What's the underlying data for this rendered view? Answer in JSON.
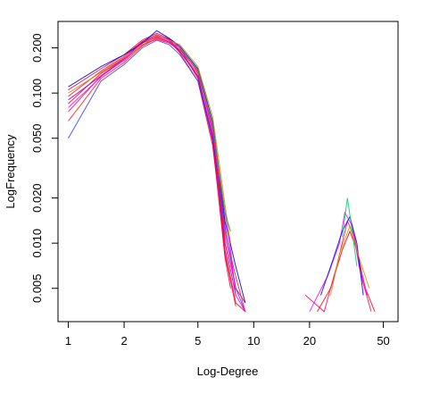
{
  "chart_data": {
    "type": "line",
    "title": "",
    "xlabel": "Log-Degree",
    "ylabel": "LogFrequency",
    "xscale": "log",
    "yscale": "log",
    "xlim": [
      0.88,
      60
    ],
    "ylim": [
      0.003,
      0.3
    ],
    "grid": false,
    "legend": "none",
    "x_ticks": [
      {
        "value": 1,
        "label": "1"
      },
      {
        "value": 2,
        "label": "2"
      },
      {
        "value": 5,
        "label": "5"
      },
      {
        "value": 10,
        "label": "10"
      },
      {
        "value": 20,
        "label": "20"
      },
      {
        "value": 50,
        "label": "50"
      }
    ],
    "y_ticks": [
      {
        "value": 0.005,
        "label": "0.005"
      },
      {
        "value": 0.01,
        "label": "0.010"
      },
      {
        "value": 0.02,
        "label": "0.020"
      },
      {
        "value": 0.05,
        "label": "0.050"
      },
      {
        "value": 0.1,
        "label": "0.100"
      },
      {
        "value": 0.2,
        "label": "0.200"
      }
    ],
    "series": [
      {
        "color": "#ff0000",
        "points": [
          [
            1,
            0.085
          ],
          [
            1.5,
            0.135
          ],
          [
            2,
            0.17
          ],
          [
            2.5,
            0.215
          ],
          [
            3,
            0.235
          ],
          [
            3.5,
            0.22
          ],
          [
            4,
            0.19
          ],
          [
            5,
            0.13
          ],
          [
            6,
            0.05
          ],
          [
            6.5,
            0.022
          ],
          [
            7,
            0.009
          ],
          [
            8,
            0.004
          ],
          [
            9,
            0.0035
          ]
        ]
      },
      {
        "color": "#ff0040",
        "points": [
          [
            1,
            0.095
          ],
          [
            1.5,
            0.14
          ],
          [
            2,
            0.175
          ],
          [
            2.5,
            0.22
          ],
          [
            3,
            0.245
          ],
          [
            3.5,
            0.225
          ],
          [
            4,
            0.185
          ],
          [
            5,
            0.12
          ],
          [
            6,
            0.045
          ],
          [
            6.5,
            0.02
          ],
          [
            7,
            0.0085
          ],
          [
            8,
            0.0038
          ]
        ]
      },
      {
        "color": "#ff0066",
        "points": [
          [
            1,
            0.075
          ],
          [
            1.5,
            0.13
          ],
          [
            2,
            0.165
          ],
          [
            2.5,
            0.21
          ],
          [
            3,
            0.228
          ],
          [
            3.5,
            0.215
          ],
          [
            4,
            0.195
          ],
          [
            5,
            0.14
          ],
          [
            6,
            0.055
          ],
          [
            6.5,
            0.025
          ],
          [
            7,
            0.011
          ],
          [
            8,
            0.005
          ],
          [
            9,
            0.004
          ]
        ]
      },
      {
        "color": "#e6004c",
        "points": [
          [
            1,
            0.105
          ],
          [
            1.5,
            0.145
          ],
          [
            2,
            0.18
          ],
          [
            2.5,
            0.225
          ],
          [
            3,
            0.25
          ],
          [
            3.5,
            0.23
          ],
          [
            4,
            0.2
          ],
          [
            5,
            0.125
          ],
          [
            6,
            0.048
          ],
          [
            6.5,
            0.019
          ],
          [
            7,
            0.008
          ],
          [
            7.5,
            0.005
          ]
        ]
      },
      {
        "color": "#ff1a1a",
        "points": [
          [
            1,
            0.065
          ],
          [
            1.5,
            0.125
          ],
          [
            2,
            0.16
          ],
          [
            2.5,
            0.205
          ],
          [
            3,
            0.232
          ],
          [
            3.5,
            0.218
          ],
          [
            4,
            0.188
          ],
          [
            5,
            0.135
          ],
          [
            6,
            0.06
          ],
          [
            6.5,
            0.028
          ],
          [
            7,
            0.012
          ],
          [
            8,
            0.006
          ],
          [
            9,
            0.0035
          ]
        ]
      },
      {
        "color": "#3a3aff",
        "points": [
          [
            1,
            0.05
          ],
          [
            1.5,
            0.12
          ],
          [
            2,
            0.155
          ],
          [
            2.5,
            0.2
          ],
          [
            3,
            0.225
          ],
          [
            3.5,
            0.21
          ],
          [
            4,
            0.18
          ],
          [
            5,
            0.12
          ],
          [
            6,
            0.05
          ],
          [
            7,
            0.013
          ],
          [
            8,
            0.005
          ],
          [
            9,
            0.0035
          ]
        ]
      },
      {
        "color": "#0000cc",
        "points": [
          [
            1,
            0.11
          ],
          [
            1.5,
            0.15
          ],
          [
            2,
            0.18
          ],
          [
            2.5,
            0.215
          ],
          [
            3,
            0.26
          ],
          [
            3.5,
            0.232
          ],
          [
            4,
            0.205
          ],
          [
            5,
            0.145
          ],
          [
            6,
            0.065
          ],
          [
            6.5,
            0.03
          ],
          [
            7,
            0.014
          ],
          [
            8,
            0.007
          ],
          [
            9,
            0.004
          ]
        ]
      },
      {
        "color": "#9900cc",
        "points": [
          [
            1,
            0.09
          ],
          [
            1.5,
            0.13
          ],
          [
            2,
            0.17
          ],
          [
            2.5,
            0.218
          ],
          [
            3,
            0.24
          ],
          [
            3.5,
            0.228
          ],
          [
            4,
            0.19
          ],
          [
            5,
            0.128
          ],
          [
            6,
            0.052
          ],
          [
            6.5,
            0.024
          ],
          [
            7,
            0.01
          ],
          [
            8,
            0.0045
          ]
        ]
      },
      {
        "color": "#ff00ff",
        "points": [
          [
            1,
            0.08
          ],
          [
            1.5,
            0.128
          ],
          [
            2,
            0.168
          ],
          [
            2.5,
            0.208
          ],
          [
            3,
            0.238
          ],
          [
            3.5,
            0.22
          ],
          [
            4,
            0.2
          ],
          [
            5,
            0.138
          ],
          [
            6,
            0.058
          ],
          [
            7,
            0.016
          ],
          [
            7.5,
            0.009
          ],
          [
            8,
            0.0045
          ],
          [
            9,
            0.0035
          ]
        ]
      },
      {
        "color": "#cc8800",
        "points": [
          [
            1,
            0.1
          ],
          [
            2,
            0.172
          ],
          [
            3,
            0.242
          ],
          [
            4,
            0.21
          ],
          [
            5,
            0.15
          ],
          [
            6,
            0.07
          ],
          [
            6.5,
            0.035
          ],
          [
            7,
            0.018
          ],
          [
            7.5,
            0.01
          ]
        ]
      },
      {
        "color": "#22aa22",
        "points": [
          [
            4,
            0.2
          ],
          [
            5,
            0.142
          ],
          [
            6,
            0.062
          ],
          [
            7,
            0.016
          ],
          [
            7.5,
            0.012
          ]
        ]
      }
    ],
    "tail_series": [
      {
        "color": "#ff0000",
        "points": [
          [
            22,
            0.0035
          ],
          [
            26,
            0.005
          ],
          [
            30,
            0.009
          ],
          [
            33,
            0.012
          ],
          [
            36,
            0.009
          ],
          [
            40,
            0.005
          ],
          [
            45,
            0.0035
          ]
        ]
      },
      {
        "color": "#ff0066",
        "points": [
          [
            19,
            0.0045
          ],
          [
            24,
            0.0035
          ],
          [
            28,
            0.007
          ],
          [
            32,
            0.014
          ],
          [
            35,
            0.011
          ],
          [
            38,
            0.006
          ],
          [
            43,
            0.0035
          ]
        ]
      },
      {
        "color": "#ff00ff",
        "points": [
          [
            20,
            0.0035
          ],
          [
            25,
            0.006
          ],
          [
            29,
            0.01
          ],
          [
            31,
            0.016
          ],
          [
            34,
            0.013
          ],
          [
            37,
            0.007
          ],
          [
            41,
            0.0045
          ]
        ]
      },
      {
        "color": "#0000ff",
        "points": [
          [
            23,
            0.0045
          ],
          [
            27,
            0.008
          ],
          [
            30,
            0.012
          ],
          [
            33,
            0.015
          ],
          [
            36,
            0.01
          ],
          [
            39,
            0.0045
          ]
        ]
      },
      {
        "color": "#00cc66",
        "points": [
          [
            30,
            0.011
          ],
          [
            32,
            0.02
          ],
          [
            34,
            0.012
          ],
          [
            36,
            0.007
          ]
        ]
      },
      {
        "color": "#cc9900",
        "points": [
          [
            26,
            0.0045
          ],
          [
            29,
            0.0085
          ],
          [
            33,
            0.013
          ],
          [
            37,
            0.008
          ],
          [
            42,
            0.005
          ]
        ]
      }
    ]
  }
}
